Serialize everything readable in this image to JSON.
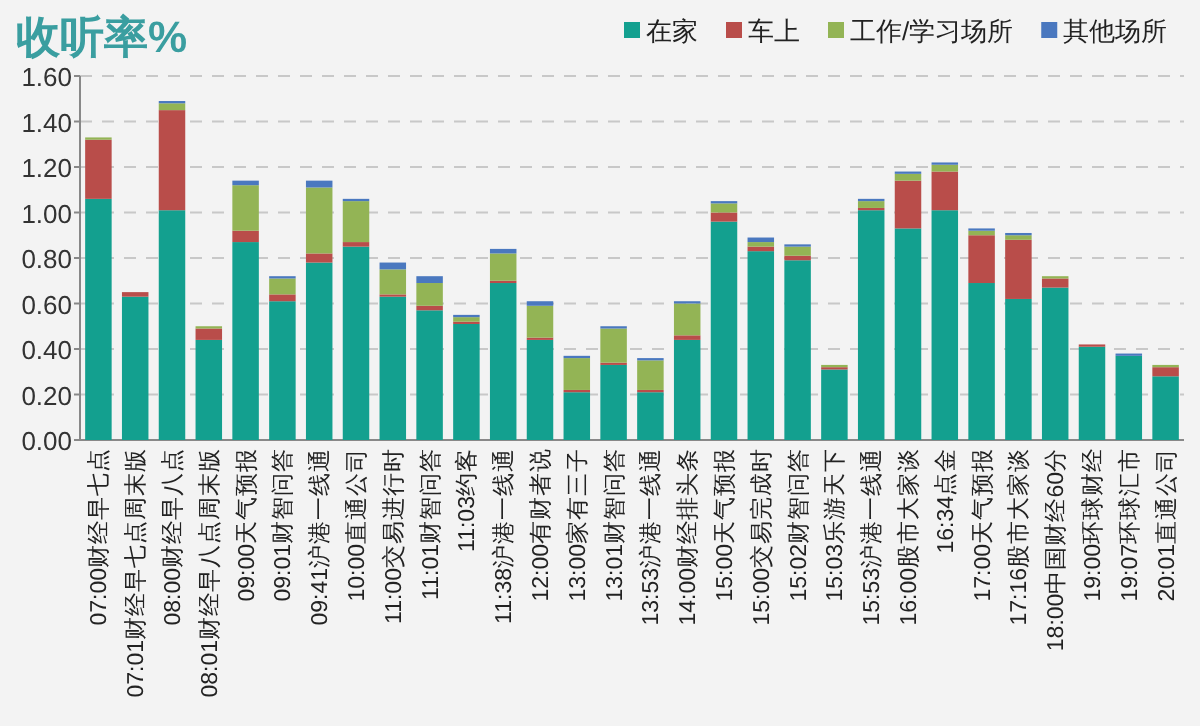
{
  "chart_data": {
    "type": "bar",
    "title": "收听率%",
    "stacked": true,
    "legend": "top right",
    "grid": "y",
    "categories": [
      "07:00财经早七点",
      "07:01财经早七点周末版",
      "08:00财经早八点",
      "08:01财经早八点周末版",
      "09:00天气预报",
      "09:01财智问答",
      "09:41沪港一线通",
      "10:00直通公司",
      "11:00交易进行时",
      "11:01财智问答",
      "11:03约客",
      "11:38沪港一线通",
      "12:00有财者说",
      "13:00家有三子",
      "13:01财智问答",
      "13:53沪港一线通",
      "14:00财经排头条",
      "15:00天气预报",
      "15:00交易完成时",
      "15:02财智问答",
      "15:03乐游天下",
      "15:53沪港一线通",
      "16:00股市大家谈",
      "16:34点金",
      "17:00天气预报",
      "17:16股市大家谈",
      "18:00中国财经60分",
      "19:00环球财经",
      "19:07环球汇市",
      "20:01直通公司"
    ],
    "series": [
      {
        "name": "在家",
        "color": "#13a08f",
        "values": [
          1.06,
          0.63,
          1.01,
          0.44,
          0.87,
          0.61,
          0.78,
          0.85,
          0.63,
          0.57,
          0.51,
          0.69,
          0.44,
          0.21,
          0.33,
          0.21,
          0.44,
          0.96,
          0.83,
          0.79,
          0.31,
          1.01,
          0.93,
          1.01,
          0.69,
          0.62,
          0.67,
          0.41,
          0.37,
          0.28
        ]
      },
      {
        "name": "车上",
        "color": "#b94d4a",
        "values": [
          0.26,
          0.02,
          0.44,
          0.05,
          0.05,
          0.03,
          0.04,
          0.02,
          0.01,
          0.02,
          0.01,
          0.01,
          0.01,
          0.01,
          0.01,
          0.01,
          0.02,
          0.04,
          0.02,
          0.02,
          0.01,
          0.01,
          0.21,
          0.17,
          0.21,
          0.26,
          0.04,
          0.01,
          0,
          0.04
        ]
      },
      {
        "name": "工作/学习场所",
        "color": "#93b455",
        "values": [
          0.01,
          0,
          0.03,
          0.01,
          0.2,
          0.07,
          0.29,
          0.18,
          0.11,
          0.1,
          0.02,
          0.12,
          0.14,
          0.14,
          0.15,
          0.13,
          0.14,
          0.04,
          0.02,
          0.04,
          0.01,
          0.03,
          0.03,
          0.03,
          0.02,
          0.02,
          0.01,
          0,
          0,
          0.01
        ]
      },
      {
        "name": "其他场所",
        "color": "#4a78bf",
        "values": [
          0,
          0,
          0.01,
          0,
          0.02,
          0.01,
          0.03,
          0.01,
          0.03,
          0.03,
          0.01,
          0.02,
          0.02,
          0.01,
          0.01,
          0.01,
          0.01,
          0.01,
          0.02,
          0.01,
          0,
          0.01,
          0.01,
          0.01,
          0.01,
          0.01,
          0,
          0,
          0.01,
          0
        ]
      }
    ],
    "ylim": [
      0,
      1.6
    ],
    "yticks": [
      {
        "value": 0,
        "label": "0.00"
      },
      {
        "value": 0.2,
        "label": "0.20"
      },
      {
        "value": 0.4,
        "label": "0.40"
      },
      {
        "value": 0.6,
        "label": "0.60"
      },
      {
        "value": 0.8,
        "label": "0.80"
      },
      {
        "value": 1,
        "label": "1.00"
      },
      {
        "value": 1.2,
        "label": "1.20"
      },
      {
        "value": 1.4,
        "label": "1.40"
      },
      {
        "value": 1.6,
        "label": "1.60"
      }
    ]
  }
}
